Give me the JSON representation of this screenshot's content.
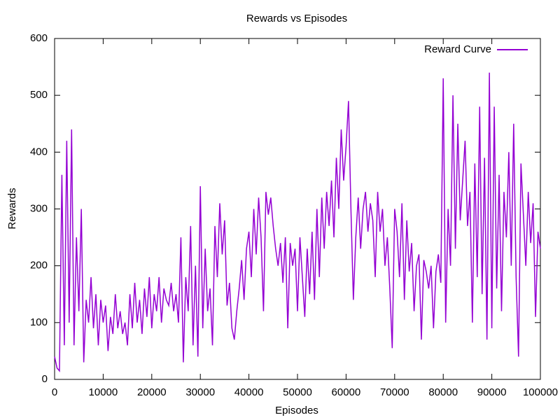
{
  "chart_data": {
    "type": "line",
    "title": "Rewards vs Episodes",
    "xlabel": "Episodes",
    "ylabel": "Rewards",
    "xlim": [
      0,
      100000
    ],
    "ylim": [
      0,
      600
    ],
    "xticks": [
      0,
      10000,
      20000,
      30000,
      40000,
      50000,
      60000,
      70000,
      80000,
      90000,
      100000
    ],
    "yticks": [
      0,
      100,
      200,
      300,
      400,
      500,
      600
    ],
    "legend": "top-right",
    "grid": false,
    "x": [
      0,
      500,
      1000,
      1500,
      2000,
      2500,
      3000,
      3500,
      4000,
      4500,
      5000,
      5500,
      6000,
      6500,
      7000,
      7500,
      8000,
      8500,
      9000,
      9500,
      10000,
      10500,
      11000,
      11500,
      12000,
      12500,
      13000,
      13500,
      14000,
      14500,
      15000,
      15500,
      16000,
      16500,
      17000,
      17500,
      18000,
      18500,
      19000,
      19500,
      20000,
      20500,
      21000,
      21500,
      22000,
      22500,
      23000,
      23500,
      24000,
      24500,
      25000,
      25500,
      26000,
      26500,
      27000,
      27500,
      28000,
      28500,
      29000,
      29500,
      30000,
      30500,
      31000,
      31500,
      32000,
      32500,
      33000,
      33500,
      34000,
      34500,
      35000,
      35500,
      36000,
      36500,
      37000,
      37500,
      38000,
      38500,
      39000,
      39500,
      40000,
      40500,
      41000,
      41500,
      42000,
      42500,
      43000,
      43500,
      44000,
      44500,
      45000,
      45500,
      46000,
      46500,
      47000,
      47500,
      48000,
      48500,
      49000,
      49500,
      50000,
      50500,
      51000,
      51500,
      52000,
      52500,
      53000,
      53500,
      54000,
      54500,
      55000,
      55500,
      56000,
      56500,
      57000,
      57500,
      58000,
      58500,
      59000,
      59500,
      60000,
      60500,
      61000,
      61500,
      62000,
      62500,
      63000,
      63500,
      64000,
      64500,
      65000,
      65500,
      66000,
      66500,
      67000,
      67500,
      68000,
      68500,
      69000,
      69500,
      70000,
      70500,
      71000,
      71500,
      72000,
      72500,
      73000,
      73500,
      74000,
      74500,
      75000,
      75500,
      76000,
      76500,
      77000,
      77500,
      78000,
      78500,
      79000,
      79500,
      80000,
      80500,
      81000,
      81500,
      82000,
      82500,
      83000,
      83500,
      84000,
      84500,
      85000,
      85500,
      86000,
      86500,
      87000,
      87500,
      88000,
      88500,
      89000,
      89500,
      90000,
      90500,
      91000,
      91500,
      92000,
      92500,
      93000,
      93500,
      94000,
      94500,
      95000,
      95500,
      96000,
      96500,
      97000,
      97500,
      98000,
      98500,
      99000,
      99500,
      100000
    ],
    "series": [
      {
        "name": "Reward Curve",
        "color": "#9400d3",
        "values": [
          40,
          20,
          15,
          360,
          60,
          420,
          100,
          440,
          60,
          250,
          120,
          300,
          30,
          140,
          100,
          180,
          90,
          150,
          60,
          140,
          100,
          130,
          50,
          110,
          80,
          150,
          90,
          120,
          80,
          100,
          60,
          150,
          90,
          170,
          100,
          140,
          80,
          160,
          110,
          180,
          90,
          150,
          120,
          180,
          100,
          160,
          140,
          130,
          170,
          120,
          150,
          100,
          250,
          30,
          180,
          120,
          270,
          60,
          200,
          40,
          340,
          90,
          230,
          120,
          160,
          60,
          270,
          180,
          310,
          220,
          280,
          130,
          170,
          90,
          70,
          120,
          160,
          210,
          140,
          230,
          260,
          180,
          300,
          220,
          320,
          250,
          120,
          330,
          290,
          320,
          270,
          230,
          200,
          240,
          170,
          250,
          90,
          240,
          200,
          230,
          120,
          250,
          180,
          110,
          230,
          150,
          260,
          140,
          300,
          180,
          320,
          230,
          330,
          270,
          350,
          250,
          390,
          300,
          440,
          350,
          410,
          490,
          300,
          140,
          250,
          320,
          230,
          300,
          330,
          260,
          310,
          280,
          180,
          330,
          260,
          300,
          200,
          250,
          160,
          55,
          300,
          260,
          180,
          310,
          140,
          280,
          190,
          240,
          120,
          200,
          220,
          70,
          210,
          190,
          160,
          200,
          90,
          190,
          220,
          170,
          530,
          100,
          300,
          200,
          500,
          230,
          450,
          280,
          350,
          420,
          270,
          330,
          100,
          380,
          180,
          480,
          150,
          390,
          70,
          540,
          90,
          480,
          160,
          360,
          120,
          330,
          250,
          400,
          200,
          450,
          180,
          40,
          380,
          290,
          200,
          330,
          240,
          310,
          110,
          260,
          230
        ]
      }
    ]
  }
}
